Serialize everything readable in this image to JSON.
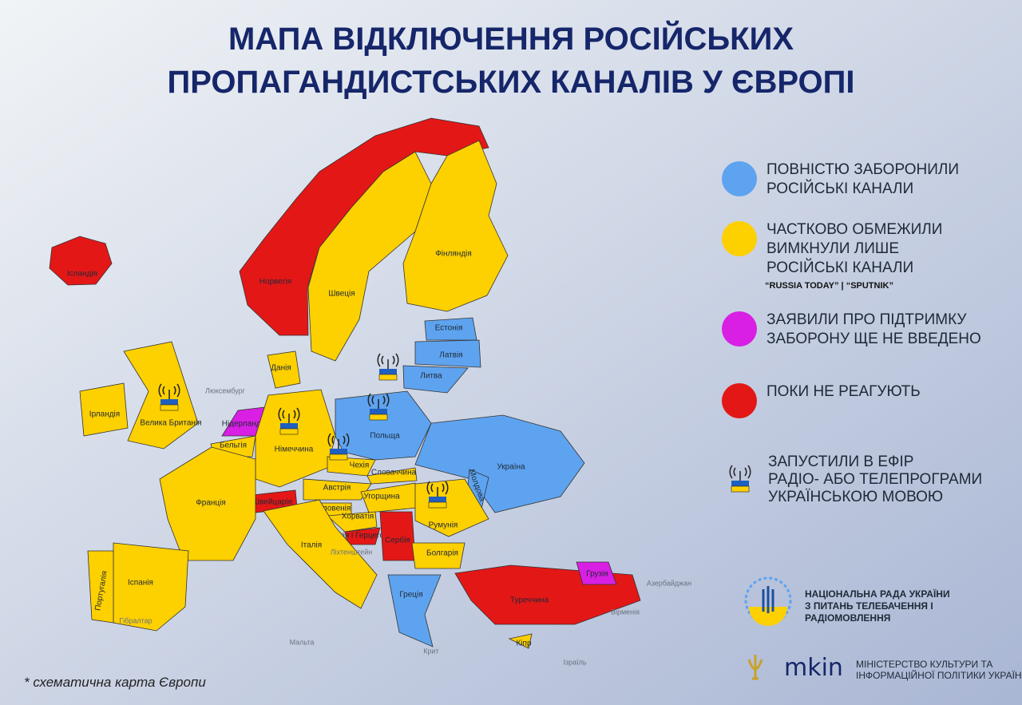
{
  "title": [
    "МАПА ВІДКЛЮЧЕННЯ РОСІЙСЬКИХ",
    "ПРОПАГАНДИСТСЬКИХ КАНАЛІВ У ЄВРОПІ"
  ],
  "legend": [
    {
      "color": "#5ea3ef",
      "lines": [
        "ПОВНІСТЮ ЗАБОРОНИЛИ",
        "РОСІЙСЬКІ КАНАЛИ"
      ]
    },
    {
      "color": "#fdd000",
      "lines": [
        "ЧАСТКОВО ОБМЕЖИЛИ",
        "ВИМКНУЛИ ЛИШЕ",
        "РОСІЙСЬКІ КАНАЛИ"
      ],
      "note": "“RUSSIA TODAY” | “SPUTNIK”"
    },
    {
      "color": "#d81fe3",
      "lines": [
        "ЗАЯВИЛИ ПРО ПІДТРИМКУ",
        "ЗАБОРОНУ ЩЕ НЕ ВВЕДЕНО"
      ]
    },
    {
      "color": "#e41717",
      "lines": [
        "ПОКИ НЕ РЕАГУЮТЬ"
      ]
    }
  ],
  "broadcast_legend": [
    "ЗАПУСТИЛИ В ЕФІР",
    "РАДІО- АБО ТЕЛЕПРОГРАМИ",
    "УКРАЇНСЬКОЮ МОВОЮ"
  ],
  "countries": [
    {
      "name": "Ісландія",
      "color": "#e41717"
    },
    {
      "name": "Норвегія",
      "color": "#e41717"
    },
    {
      "name": "Швеція",
      "color": "#fdd000"
    },
    {
      "name": "Фінляндія",
      "color": "#fdd000"
    },
    {
      "name": "Естонія",
      "color": "#5ea3ef"
    },
    {
      "name": "Латвія",
      "color": "#5ea3ef"
    },
    {
      "name": "Литва",
      "color": "#5ea3ef",
      "broadcast": true
    },
    {
      "name": "Данія",
      "color": "#fdd000"
    },
    {
      "name": "Ірландія",
      "color": "#fdd000"
    },
    {
      "name": "Велика Британія",
      "color": "#fdd000",
      "broadcast": true
    },
    {
      "name": "Нідерланди",
      "color": "#d81fe3"
    },
    {
      "name": "Бельгія",
      "color": "#fdd000"
    },
    {
      "name": "Німеччина",
      "color": "#fdd000",
      "broadcast": true
    },
    {
      "name": "Польща",
      "color": "#5ea3ef",
      "broadcast": true
    },
    {
      "name": "Чехія",
      "color": "#fdd000",
      "broadcast": true
    },
    {
      "name": "Словаччина",
      "color": "#fdd000"
    },
    {
      "name": "Австрія",
      "color": "#fdd000"
    },
    {
      "name": "Угорщина",
      "color": "#fdd000"
    },
    {
      "name": "Швейцарія",
      "color": "#e41717"
    },
    {
      "name": "Франція",
      "color": "#fdd000"
    },
    {
      "name": "Україна",
      "color": "#5ea3ef"
    },
    {
      "name": "Молдова",
      "color": "#5ea3ef"
    },
    {
      "name": "Румунія",
      "color": "#fdd000",
      "broadcast": true
    },
    {
      "name": "Словенія",
      "color": "#fdd000"
    },
    {
      "name": "Хорватія",
      "color": "#fdd000"
    },
    {
      "name": "Боснія і Герцеговина",
      "color": "#e41717"
    },
    {
      "name": "Сербія",
      "color": "#e41717"
    },
    {
      "name": "Болгарія",
      "color": "#fdd000"
    },
    {
      "name": "Італія",
      "color": "#fdd000"
    },
    {
      "name": "Іспанія",
      "color": "#fdd000"
    },
    {
      "name": "Португалія",
      "color": "#fdd000"
    },
    {
      "name": "Греція",
      "color": "#5ea3ef"
    },
    {
      "name": "Туреччина",
      "color": "#e41717"
    },
    {
      "name": "Грузія",
      "color": "#d81fe3"
    },
    {
      "name": "Кіпр",
      "color": "#fdd000"
    }
  ],
  "outside_labels": [
    "Люксембург",
    "Ліхтенштейн",
    "Гібралтар",
    "Мальта",
    "Крит",
    "Вірменія",
    "Азербайджан",
    "Ізраїль"
  ],
  "footnote": "* схематична карта Європи",
  "org_council": [
    "НАЦІОНАЛЬНА РАДА УКРАЇНИ",
    "З ПИТАНЬ ТЕЛЕБАЧЕННЯ І",
    "РАДІОМОВЛЕННЯ"
  ],
  "org_ministry": [
    "МІНІСТЕРСТВО КУЛЬТУРИ ТА",
    "ІНФОРМАЦІЙНОЇ ПОЛІТИКИ УКРАЇНИ"
  ]
}
